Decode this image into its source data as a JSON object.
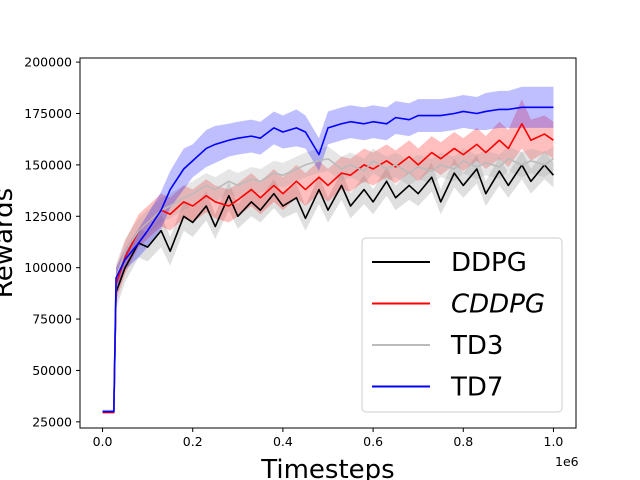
{
  "chart_data": {
    "type": "line",
    "title": "",
    "xlabel": "Timesteps",
    "ylabel": "Rewards",
    "x_offset_label": "1e6",
    "xlim": [
      -0.05,
      1.05
    ],
    "ylim": [
      22000,
      202000
    ],
    "xticks": [
      0.0,
      0.2,
      0.4,
      0.6,
      0.8,
      1.0
    ],
    "xtick_labels": [
      "0.0",
      "0.2",
      "0.4",
      "0.6",
      "0.8",
      "1.0"
    ],
    "yticks": [
      25000,
      50000,
      75000,
      100000,
      125000,
      150000,
      175000,
      200000
    ],
    "ytick_labels": [
      "25000",
      "50000",
      "75000",
      "100000",
      "125000",
      "150000",
      "175000",
      "200000"
    ],
    "grid": false,
    "legend_position": "lower-right",
    "x": [
      0.0,
      0.02,
      0.025,
      0.03,
      0.05,
      0.08,
      0.1,
      0.13,
      0.15,
      0.18,
      0.2,
      0.23,
      0.25,
      0.28,
      0.3,
      0.33,
      0.35,
      0.38,
      0.4,
      0.43,
      0.45,
      0.48,
      0.5,
      0.53,
      0.55,
      0.58,
      0.6,
      0.63,
      0.65,
      0.68,
      0.7,
      0.73,
      0.75,
      0.78,
      0.8,
      0.83,
      0.85,
      0.88,
      0.9,
      0.93,
      0.95,
      0.98,
      1.0
    ],
    "series": [
      {
        "name": "DDPG",
        "italic": false,
        "color": "#000000",
        "band_color": "#7f7f7f",
        "values": [
          30000,
          30000,
          30000,
          88000,
          100000,
          112000,
          110000,
          118000,
          108000,
          125000,
          122000,
          130000,
          120000,
          135000,
          125000,
          132000,
          128000,
          136000,
          130000,
          134000,
          124000,
          138000,
          128000,
          140000,
          130000,
          138000,
          132000,
          142000,
          134000,
          140000,
          136000,
          144000,
          132000,
          146000,
          140000,
          148000,
          136000,
          147000,
          140000,
          150000,
          142000,
          150000,
          145000
        ],
        "spread": [
          0,
          0,
          0,
          8000,
          7000,
          7000,
          7000,
          8000,
          7000,
          7000,
          7000,
          7000,
          6000,
          7000,
          6000,
          7000,
          6000,
          7000,
          6000,
          7000,
          6000,
          7000,
          6000,
          7000,
          6000,
          7000,
          6000,
          7000,
          6000,
          7000,
          6000,
          7000,
          6000,
          7000,
          6000,
          7000,
          6000,
          7000,
          6000,
          7000,
          6000,
          7000,
          6000
        ]
      },
      {
        "name": "CDDPG",
        "italic": true,
        "color": "#ff0000",
        "band_color": "#ff0000",
        "values": [
          29500,
          29500,
          29500,
          92000,
          105000,
          118000,
          122000,
          128000,
          126000,
          132000,
          130000,
          135000,
          132000,
          130000,
          133000,
          138000,
          134000,
          140000,
          136000,
          142000,
          138000,
          144000,
          140000,
          146000,
          145000,
          150000,
          148000,
          152000,
          149000,
          154000,
          150000,
          156000,
          153000,
          158000,
          155000,
          160000,
          156000,
          162000,
          158000,
          170000,
          162000,
          165000,
          162000
        ],
        "spread": [
          0,
          0,
          0,
          8000,
          8000,
          8000,
          8000,
          8000,
          8000,
          8000,
          8000,
          8000,
          8000,
          8000,
          8000,
          8000,
          8000,
          8000,
          8000,
          8000,
          8000,
          8000,
          8000,
          8000,
          8000,
          8000,
          8000,
          8000,
          8000,
          8000,
          8000,
          8000,
          8000,
          8000,
          8000,
          8000,
          8000,
          9000,
          9000,
          12000,
          10000,
          9000,
          9000
        ]
      },
      {
        "name": "TD3",
        "italic": false,
        "color": "#bbbbbb",
        "band_color": "#9a9a9a",
        "values": [
          30500,
          30500,
          30500,
          95000,
          108000,
          118000,
          122000,
          128000,
          130000,
          134000,
          136000,
          140000,
          138000,
          142000,
          140000,
          143000,
          142000,
          146000,
          145000,
          148000,
          150000,
          152000,
          153000,
          148000,
          150000,
          147000,
          152000,
          148000,
          150000,
          146000,
          149000,
          147000,
          150000,
          148000,
          152000,
          149000,
          151000,
          149000,
          153000,
          150000,
          152000,
          150000,
          153000
        ],
        "spread": [
          0,
          0,
          0,
          7000,
          6000,
          6000,
          6000,
          6000,
          6000,
          6000,
          6000,
          6000,
          6000,
          6000,
          6000,
          6000,
          6000,
          6000,
          6000,
          6000,
          6000,
          6000,
          6000,
          6000,
          6000,
          6000,
          6000,
          6000,
          6000,
          6000,
          6000,
          6000,
          6000,
          6000,
          6000,
          6000,
          6000,
          6000,
          6000,
          6000,
          6000,
          6000,
          6000
        ]
      },
      {
        "name": "TD7",
        "italic": false,
        "color": "#0000ff",
        "band_color": "#0000ff",
        "values": [
          30000,
          30000,
          30000,
          95000,
          104000,
          112000,
          118000,
          128000,
          138000,
          148000,
          152000,
          158000,
          160000,
          162000,
          163000,
          164000,
          163000,
          168000,
          166000,
          168000,
          166000,
          155000,
          168000,
          170000,
          171000,
          170000,
          171000,
          170000,
          173000,
          172000,
          174000,
          174000,
          174000,
          175000,
          176000,
          175000,
          176000,
          177000,
          177000,
          178000,
          178000,
          178000,
          178000
        ],
        "spread": [
          0,
          0,
          0,
          5000,
          5000,
          7000,
          8000,
          9000,
          9000,
          10000,
          8000,
          9000,
          9000,
          8000,
          8000,
          8000,
          8000,
          8000,
          8000,
          9000,
          8000,
          8000,
          8000,
          8000,
          8000,
          8000,
          8000,
          8000,
          8000,
          8000,
          8000,
          8000,
          8000,
          8000,
          8000,
          8000,
          9000,
          9000,
          9000,
          10000,
          10000,
          10000,
          10000
        ]
      }
    ]
  }
}
